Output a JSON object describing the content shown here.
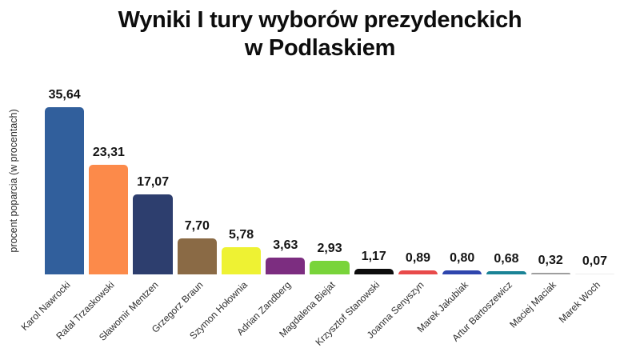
{
  "chart_data": {
    "type": "bar",
    "title_line1": "Wyniki I tury wyborów prezydenckich",
    "title_line2": "w Podlaskiem",
    "ylabel": "procent poparcia (w procentach)",
    "ylim": [
      0,
      37
    ],
    "grid": false,
    "legend": null,
    "value_label_format": "comma-decimal",
    "categories": [
      "Karol Nawrocki",
      "Rafał Trzaskowski",
      "Sławomir Mentzen",
      "Grzegorz Braun",
      "Szymon Hołownia",
      "Adrian Zandberg",
      "Magdalena Biejat",
      "Krzysztof Stanowski",
      "Joanna Senyszyn",
      "Marek Jakubiak",
      "Artur Bartoszewicz",
      "Maciej Maciak",
      "Marek Woch"
    ],
    "values": [
      35.64,
      23.31,
      17.07,
      7.7,
      5.78,
      3.63,
      2.93,
      1.17,
      0.89,
      0.8,
      0.68,
      0.32,
      0.07
    ],
    "value_labels": [
      "35,64",
      "23,31",
      "17,07",
      "7,70",
      "5,78",
      "3,63",
      "2,93",
      "1,17",
      "0,89",
      "0,80",
      "0,68",
      "0,32",
      "0,07"
    ],
    "colors": [
      "#315f9c",
      "#fc8a4a",
      "#2d3e6e",
      "#8a6a45",
      "#eef233",
      "#7c2d80",
      "#79d43a",
      "#0d0d0d",
      "#e84a4a",
      "#2e45ad",
      "#1a8396",
      "#9e9e9e",
      "#ececec"
    ]
  }
}
